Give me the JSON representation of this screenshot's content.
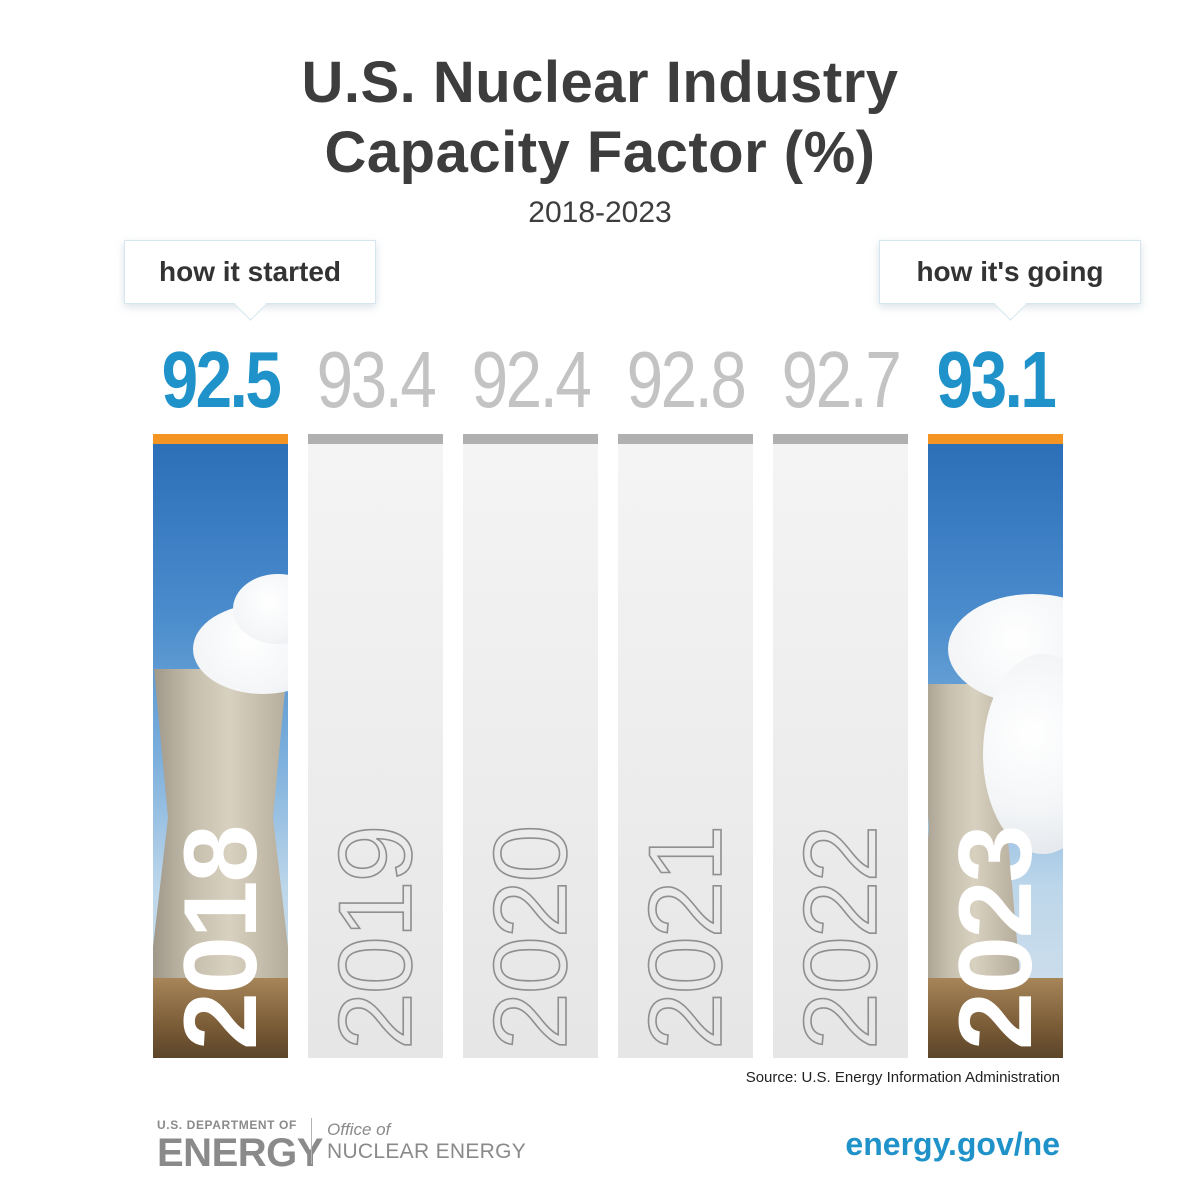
{
  "chart_data": {
    "type": "bar",
    "title": "U.S. Nuclear Industry Capacity Factor (%)",
    "title_lines": [
      "U.S. Nuclear Industry",
      "Capacity Factor (%)"
    ],
    "subtitle": "2018-2023",
    "categories": [
      "2018",
      "2019",
      "2020",
      "2021",
      "2022",
      "2023"
    ],
    "values": [
      92.5,
      93.4,
      92.4,
      92.8,
      92.7,
      93.1
    ],
    "value_labels": [
      "92.5",
      "93.4",
      "92.4",
      "92.8",
      "92.7",
      "93.1"
    ],
    "highlighted": [
      true,
      false,
      false,
      false,
      false,
      true
    ],
    "annotations": [
      {
        "category": "2018",
        "text": "how it started"
      },
      {
        "category": "2023",
        "text": "how it's going"
      }
    ],
    "source": "Source: U.S. Energy Information Administration"
  },
  "footer": {
    "doe_small": "U.S. DEPARTMENT OF",
    "doe_big": "ENERGY",
    "office_line1": "Office of",
    "office_line2": "NUCLEAR ENERGY",
    "url": "energy.gov/ne"
  },
  "colors": {
    "highlight_value": "#1f92c9",
    "muted_value": "#c3c3c3",
    "highlight_cap": "#f39423",
    "muted_cap": "#b0b0b0",
    "title": "#3d3d3d"
  }
}
